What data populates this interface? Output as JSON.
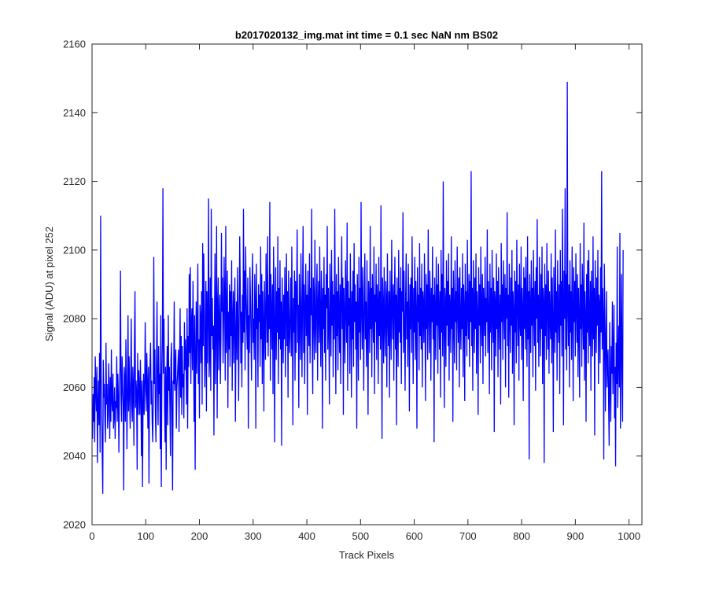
{
  "chart_data": {
    "type": "line",
    "title": "b2017020132_img.mat int time = 0.1 sec  NaN nm BS02",
    "xlabel": "Track Pixels",
    "ylabel": "Signal (ADU) at pixel 252",
    "xlim": [
      0,
      1024
    ],
    "ylim": [
      2020,
      2160
    ],
    "x_ticks": [
      0,
      100,
      200,
      300,
      400,
      500,
      600,
      700,
      800,
      900,
      1000
    ],
    "y_ticks": [
      2020,
      2040,
      2060,
      2080,
      2100,
      2120,
      2140,
      2160
    ],
    "grid": false,
    "line_color": "#0000ff",
    "series": [
      {
        "x_start": 1,
        "x_step": 1,
        "values": [
          2045,
          2058,
          2050,
          2063,
          2044,
          2069,
          2060,
          2053,
          2066,
          2038,
          2055,
          2062,
          2049,
          2070,
          2041,
          2110,
          2064,
          2052,
          2040,
          2029,
          2068,
          2057,
          2061,
          2050,
          2044,
          2073,
          2055,
          2061,
          2048,
          2052,
          2067,
          2059,
          2045,
          2063,
          2050,
          2071,
          2056,
          2053,
          2064,
          2048,
          2052,
          2060,
          2045,
          2056,
          2054,
          2069,
          2050,
          2064,
          2057,
          2041,
          2060,
          2066,
          2094,
          2058,
          2050,
          2069,
          2061,
          2055,
          2030,
          2066,
          2062,
          2050,
          2074,
          2060,
          2042,
          2059,
          2081,
          2053,
          2069,
          2058,
          2048,
          2062,
          2080,
          2055,
          2050,
          2066,
          2060,
          2043,
          2073,
          2088,
          2054,
          2062,
          2058,
          2036,
          2070,
          2052,
          2065,
          2060,
          2052,
          2068,
          2058,
          2040,
          2062,
          2031,
          2055,
          2064,
          2052,
          2059,
          2079,
          2062,
          2053,
          2070,
          2061,
          2048,
          2066,
          2032,
          2060,
          2067,
          2073,
          2055,
          2062,
          2050,
          2044,
          2058,
          2098,
          2061,
          2071,
          2052,
          2044,
          2067,
          2085,
          2060,
          2049,
          2072,
          2058,
          2064,
          2042,
          2081,
          2031,
          2062,
          2074,
          2118,
          2064,
          2080,
          2055,
          2044,
          2066,
          2036,
          2062,
          2072,
          2049,
          2081,
          2059,
          2066,
          2054,
          2040,
          2068,
          2073,
          2050,
          2030,
          2062,
          2061,
          2085,
          2059,
          2065,
          2071,
          2048,
          2060,
          2063,
          2067,
          2071,
          2047,
          2066,
          2083,
          2057,
          2075,
          2052,
          2072,
          2060,
          2064,
          2051,
          2079,
          2065,
          2074,
          2068,
          2055,
          2083,
          2048,
          2075,
          2066,
          2093,
          2070,
          2095,
          2061,
          2078,
          2083,
          2065,
          2091,
          2074,
          2050,
          2081,
          2036,
          2069,
          2085,
          2064,
          2078,
          2096,
          2061,
          2074,
          2051,
          2084,
          2080,
          2067,
          2088,
          2055,
          2102,
          2072,
          2099,
          2085,
          2060,
          2072,
          2091,
          2053,
          2088,
          2067,
          2081,
          2115,
          2063,
          2069,
          2092,
          2059,
          2112,
          2075,
          2086,
          2071,
          2078,
          2046,
          2080,
          2099,
          2061,
          2078,
          2107,
          2051,
          2083,
          2092,
          2065,
          2079,
          2087,
          2061,
          2074,
          2105,
          2082,
          2092,
          2067,
          2078,
          2098,
          2084,
          2062,
          2107,
          2070,
          2078,
          2094,
          2054,
          2082,
          2071,
          2090,
          2066,
          2088,
          2075,
          2097,
          2059,
          2079,
          2088,
          2067,
          2083,
          2092,
          2050,
          2075,
          2085,
          2068,
          2095,
          2081,
          2056,
          2078,
          2104,
          2090,
          2067,
          2082,
          2060,
          2087,
          2073,
          2112,
          2076,
          2094,
          2065,
          2101,
          2088,
          2079,
          2071,
          2092,
          2048,
          2081,
          2070,
          2095,
          2086,
          2075,
          2062,
          2089,
          2099,
          2073,
          2080,
          2068,
          2093,
          2084,
          2048,
          2096,
          2077,
          2083,
          2060,
          2090,
          2079,
          2087,
          2066,
          2101,
          2074,
          2093,
          2061,
          2088,
          2078,
          2053,
          2091,
          2080,
          2068,
          2099,
          2085,
          2073,
          2104,
          2069,
          2087,
          2077,
          2114,
          2062,
          2093,
          2082,
          2071,
          2090,
          2058,
          2101,
          2087,
          2044,
          2079,
          2095,
          2068,
          2088,
          2076,
          2104,
          2061,
          2089,
          2074,
          2097,
          2071,
          2085,
          2043,
          2092,
          2079,
          2067,
          2087,
          2074,
          2095,
          2063,
          2083,
          2099,
          2072,
          2088,
          2057,
          2094,
          2078,
          2070,
          2082,
          2092,
          2069,
          2101,
          2080,
          2049,
          2086,
          2076,
          2094,
          2062,
          2091,
          2070,
          2088,
          2106,
          2073,
          2084,
          2054,
          2093,
          2079,
          2068,
          2099,
          2082,
          2063,
          2088,
          2107,
          2070,
          2090,
          2061,
          2083,
          2096,
          2075,
          2087,
          2052,
          2094,
          2080,
          2072,
          2099,
          2067,
          2089,
          2081,
          2112,
          2074,
          2058,
          2092,
          2085,
          2068,
          2103,
          2079,
          2070,
          2088,
          2096,
          2062,
          2084,
          2091,
          2073,
          2101,
          2080,
          2066,
          2094,
          2085,
          2048,
          2089,
          2077,
          2098,
          2070,
          2087,
          2062,
          2093,
          2083,
          2107,
          2071,
          2089,
          2079,
          2055,
          2096,
          2084,
          2069,
          2100,
          2078,
          2091,
          2063,
          2087,
          2074,
          2112,
          2082,
          2058,
          2093,
          2075,
          2088,
          2065,
          2098,
          2081,
          2070,
          2090,
          2061,
          2086,
          2104,
          2077,
          2092,
          2052,
          2089,
          2080,
          2067,
          2097,
          2084,
          2073,
          2108,
          2059,
          2091,
          2078,
          2086,
          2064,
          2099,
          2083,
          2057,
          2088,
          2074,
          2094,
          2066,
          2102,
          2079,
          2090,
          2071,
          2085,
          2048,
          2093,
          2081,
          2062,
          2098,
          2076,
          2089,
          2068,
          2114,
          2083,
          2071,
          2095,
          2080,
          2059,
          2088,
          2099,
          2074,
          2085,
          2066,
          2097,
          2078,
          2052,
          2091,
          2084,
          2070,
          2107,
          2077,
          2089,
          2063,
          2093,
          2082,
          2073,
          2101,
          2058,
          2087,
          2079,
          2096,
          2068,
          2090,
          2084,
          2061,
          2098,
          2075,
          2088,
          2071,
          2113,
          2080,
          2045,
          2092,
          2084,
          2067,
          2095,
          2078,
          2069,
          2091,
          2086,
          2060,
          2099,
          2081,
          2072,
          2088,
          2057,
          2094,
          2079,
          2068,
          2103,
          2083,
          2074,
          2090,
          2062,
          2086,
          2098,
          2071,
          2087,
          2049,
          2092,
          2080,
          2066,
          2100,
          2076,
          2089,
          2073,
          2095,
          2061,
          2088,
          2082,
          2111,
          2070,
          2094,
          2078,
          2059,
          2087,
          2099,
          2074,
          2085,
          2066,
          2096,
          2081,
          2053,
          2090,
          2077,
          2092,
          2070,
          2104,
          2083,
          2061,
          2089,
          2076,
          2098,
          2068,
          2091,
          2082,
          2048,
          2095,
          2079,
          2087,
          2065,
          2102,
          2075,
          2089,
          2071,
          2096,
          2060,
          2088,
          2084,
          2073,
          2099,
          2080,
          2056,
          2093,
          2077,
          2090,
          2068,
          2106,
          2082,
          2070,
          2094,
          2086,
          2062,
          2089,
          2079,
          2101,
          2074,
          2087,
          2044,
          2092,
          2081,
          2068,
          2098,
          2078,
          2090,
          2064,
          2096,
          2083,
          2071,
          2088,
          2057,
          2100,
          2076,
          2093,
          2069,
          2120,
          2080,
          2054,
          2089,
          2085,
          2066,
          2097,
          2078,
          2091,
          2072,
          2099,
          2062,
          2087,
          2083,
          2070,
          2104,
          2077,
          2089,
          2050,
          2094,
          2081,
          2067,
          2097,
          2079,
          2088,
          2065,
          2101,
          2084,
          2073,
          2092,
          2060,
          2095,
          2080,
          2071,
          2089,
          2077,
          2099,
          2063,
          2090,
          2083,
          2056,
          2096,
          2075,
          2088,
          2069,
          2103,
          2082,
          2074,
          2093,
          2066,
          2091,
          2079,
          2123,
          2072,
          2089,
          2059,
          2097,
          2084,
          2070,
          2092,
          2077,
          2099,
          2064,
          2088,
          2081,
          2052,
          2095,
          2078,
          2090,
          2067,
          2101,
          2080,
          2072,
          2093,
          2061,
          2089,
          2083,
          2075,
          2098,
          2069,
          2086,
          2079,
          2106,
          2070,
          2091,
          2082,
          2058,
          2096,
          2076,
          2089,
          2065,
          2100,
          2081,
          2073,
          2092,
          2047,
          2088,
          2084,
          2069,
          2099,
          2077,
          2091,
          2063,
          2095,
          2082,
          2071,
          2087,
          2055,
          2102,
          2079,
          2090,
          2068,
          2097,
          2084,
          2074,
          2093,
          2060,
          2089,
          2080,
          2111,
          2072,
          2087,
          2057,
          2096,
          2083,
          2070,
          2092,
          2078,
          2100,
          2064,
          2088,
          2082,
          2049,
          2094,
          2076,
          2091,
          2067,
          2103,
          2085,
          2072,
          2090,
          2062,
          2096,
          2079,
          2075,
          2101,
          2068,
          2089,
          2083,
          2056,
          2095,
          2077,
          2092,
          2071,
          2098,
          2081,
          2066,
          2104,
          2074,
          2088,
          2039,
          2093,
          2082,
          2070,
          2097,
          2078,
          2089,
          2063,
          2100,
          2084,
          2072,
          2091,
          2059,
          2095,
          2080,
          2109,
          2073,
          2087,
          2066,
          2098,
          2082,
          2069,
          2093,
          2077,
          2101,
          2061,
          2089,
          2085,
          2038,
          2096,
          2075,
          2090,
          2068,
          2102,
          2083,
          2071,
          2094,
          2064,
          2088,
          2081,
          2074,
          2099,
          2067,
          2092,
          2079,
          2047,
          2095,
          2084,
          2070,
          2106,
          2076,
          2088,
          2062,
          2097,
          2082,
          2073,
          2090,
          2058,
          2100,
          2078,
          2091,
          2069,
          2112,
          2085,
          2049,
          2094,
          2080,
          2118,
          2071,
          2093,
          2065,
          2149,
          2083,
          2072,
          2090,
          2060,
          2097,
          2076,
          2088,
          2068,
          2101,
          2082,
          2056,
          2095,
          2079,
          2091,
          2069,
          2099,
          2084,
          2073,
          2093,
          2063,
          2089,
          2080,
          2057,
          2102,
          2077,
          2090,
          2066,
          2096,
          2083,
          2071,
          2108,
          2062,
          2088,
          2081,
          2050,
          2093,
          2076,
          2097,
          2067,
          2100,
          2079,
          2072,
          2091,
          2059,
          2094,
          2082,
          2069,
          2104,
          2074,
          2089,
          2046,
          2097,
          2083,
          2070,
          2092,
          2078,
          2100,
          2061,
          2087,
          2084,
          2067,
          2095,
          2076,
          2123,
          2071,
          2089,
          2080,
          2039,
          2096,
          2081,
          2053,
          2074,
          2088,
          2060,
          2067,
          2071,
          2055,
          2043,
          2079,
          2062,
          2050,
          2072,
          2064,
          2085,
          2058,
          2069,
          2084,
          2051,
          2066,
          2037,
          2073,
          2061,
          2101,
          2054,
          2068,
          2078,
          2060,
          2105,
          2048,
          2070,
          2093,
          2062,
          2050,
          2100
        ]
      }
    ]
  }
}
